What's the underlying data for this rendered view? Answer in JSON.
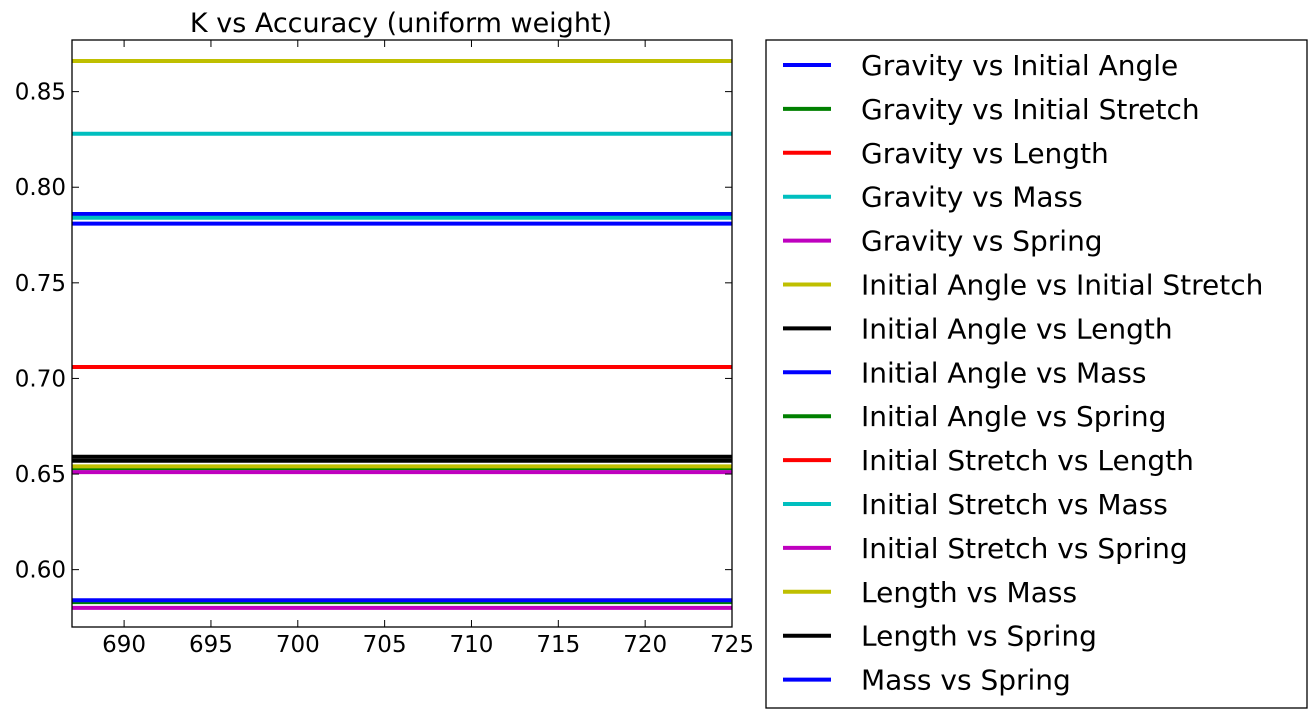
{
  "chart_data": {
    "type": "line",
    "title": "K vs Accuracy (uniform weight)",
    "xlabel": "",
    "ylabel": "",
    "xlim": [
      687,
      725
    ],
    "ylim": [
      0.57,
      0.877
    ],
    "xticks": [
      690,
      695,
      700,
      705,
      710,
      715,
      720,
      725
    ],
    "yticks": [
      0.6,
      0.65,
      0.7,
      0.75,
      0.8,
      0.85
    ],
    "ytick_labels": [
      "0.60",
      "0.65",
      "0.70",
      "0.75",
      "0.80",
      "0.85"
    ],
    "x": [
      687,
      725
    ],
    "grid": false,
    "legend_position": "outside-right",
    "series": [
      {
        "name": "Gravity vs Initial Angle",
        "color": "#0000ff",
        "values": [
          0.786,
          0.786
        ]
      },
      {
        "name": "Gravity vs Initial Stretch",
        "color": "#008000",
        "values": [
          0.583,
          0.583
        ]
      },
      {
        "name": "Gravity vs Length",
        "color": "#ff0000",
        "values": [
          0.706,
          0.706
        ]
      },
      {
        "name": "Gravity vs Mass",
        "color": "#00bfbf",
        "values": [
          0.828,
          0.828
        ]
      },
      {
        "name": "Gravity vs Spring",
        "color": "#bf00bf",
        "values": [
          0.58,
          0.58
        ]
      },
      {
        "name": "Initial Angle vs Initial Stretch",
        "color": "#bfbf00",
        "values": [
          0.866,
          0.866
        ]
      },
      {
        "name": "Initial Angle vs Length",
        "color": "#000000",
        "values": [
          0.659,
          0.659
        ]
      },
      {
        "name": "Initial Angle vs Mass",
        "color": "#0000ff",
        "values": [
          0.781,
          0.781
        ]
      },
      {
        "name": "Initial Angle vs Spring",
        "color": "#008000",
        "values": [
          0.653,
          0.653
        ]
      },
      {
        "name": "Initial Stretch vs Length",
        "color": "#ff0000",
        "values": [
          0.706,
          0.706
        ]
      },
      {
        "name": "Initial Stretch vs Mass",
        "color": "#00bfbf",
        "values": [
          0.784,
          0.784
        ]
      },
      {
        "name": "Initial Stretch vs Spring",
        "color": "#bf00bf",
        "values": [
          0.651,
          0.651
        ]
      },
      {
        "name": "Length vs Mass",
        "color": "#bfbf00",
        "values": [
          0.654,
          0.654
        ]
      },
      {
        "name": "Length vs Spring",
        "color": "#000000",
        "values": [
          0.657,
          0.657
        ]
      },
      {
        "name": "Mass vs Spring",
        "color": "#0000ff",
        "values": [
          0.584,
          0.584
        ]
      }
    ]
  }
}
